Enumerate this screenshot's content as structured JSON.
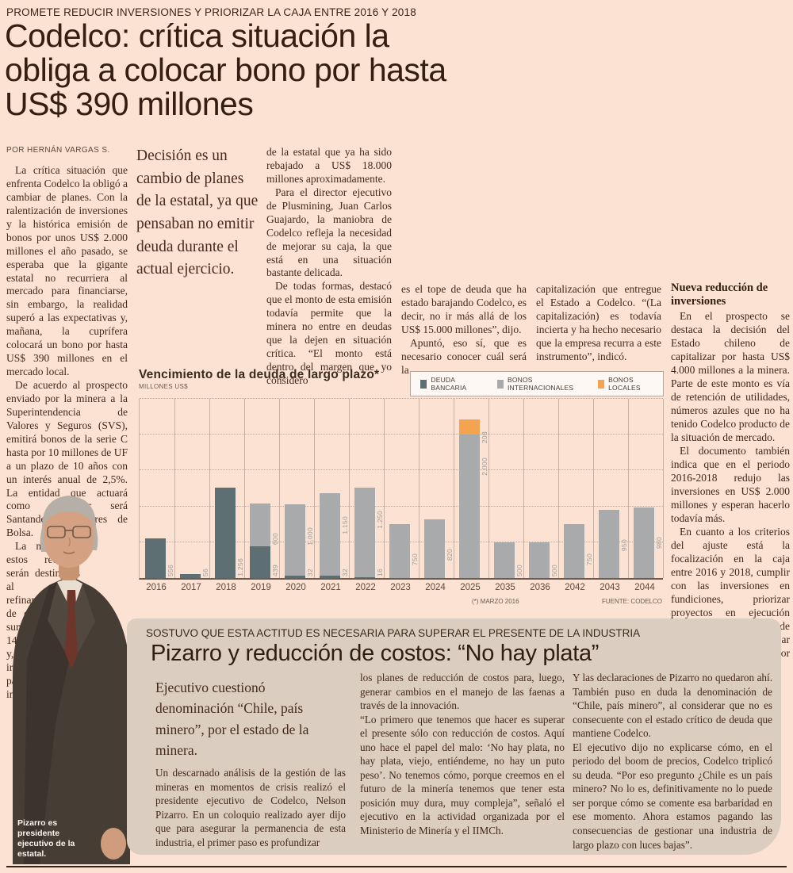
{
  "article1": {
    "kicker": "PROMETE REDUCIR INVERSIONES Y PRIORIZAR LA CAJA ENTRE 2016 Y 2018",
    "headline": "Codelco: crítica situación la obliga a colocar bono por hasta US$ 390 millones",
    "byline": "POR HERNÁN VARGAS S.",
    "col1_p1": "La crítica situación que enfrenta Codelco la obligó a cambiar de planes. Con la ralentización de inversiones y la histórica emisión de bonos por unos US$ 2.000 millones el año pasado, se esperaba que la gigante estatal no recurriera al mercado para financiarse, sin embargo, la realidad superó a las expectativas y, mañana, la cuprífera colocará un bono por hasta US$ 390 millones en el mercado local.",
    "col1_p2": "De acuerdo al prospecto enviado por la minera a la Superintendencia de Valores y Seguros (SVS), emitirá bonos de la serie C hasta por 10 millones de UF a un plazo de 10 años con un interés anual de 2,5%. La entidad que actuará como colocador será Santander Corredores de Bolsa.",
    "col1_p3": "La mitad de estos recursos serán destinados al refinanciamiento de deudas -que suman unos US$ 14.000 millones- y, el otro 50%, irán a cubrir parte del plan de inversiones",
    "pull_quote": "Decisión es un cambio de planes de la estatal, ya que pensaban no emitir deuda durante el actual ejercicio.",
    "col3_p1": "de la estatal que ya ha sido rebajado a US$ 18.000 millones aproximadamente.",
    "col3_p2": "Para el director ejecutivo de Plusmining, Juan Carlos Guajardo, la maniobra de Codelco refleja la necesidad de mejorar su caja, la que está en una situación bastante delicada.",
    "col3_p3": "De todas formas, destacó que el monto de esta emisión todavía permite que la minera no entre en deudas que la dejen en situación crítica. “El monto está dentro del margen que yo considero",
    "col4_p1": "es el tope de deuda que ha estado barajando Codelco, es decir, no ir más allá de los US$ 15.000 millones”, dijo.",
    "col4_p2": "Apuntó, eso sí, que es necesario conocer cuál será la",
    "col5_p1": "capitalización que entregue el Estado a Codelco. “(La capitalización) es todavía incierta y ha hecho necesario que la empresa recurra a este instrumento”, indicó.",
    "sidebar_title": "Nueva reducción de inversiones",
    "sidebar_p1": "En el prospecto se destaca la decisión del Estado chileno de capitalizar por hasta US$ 4.000 millones a la minera. Parte de este monto es vía de retención de utilidades, números azules que no ha tenido Codelco producto de la situación de mercado.",
    "sidebar_p2": "El documento también indica que en el periodo 2016-2018 redujo las inversiones en US$ 2.000 millones y esperan hacerlo todavía más.",
    "sidebar_p3": "En cuanto a los criterios del ajuste está la focalización en la caja entre 2016 y 2018, cumplir con las inversiones en fundiciones, priorizar proyectos en ejecución para evitar costos de paralización y rankear iniciativas por menor Capex, entre otras."
  },
  "chart_data": {
    "type": "bar",
    "title": "Vencimiento de la deuda de largo plazo*",
    "ylabel": "MILLONES US$",
    "categories": [
      "2016",
      "2017",
      "2018",
      "2019",
      "2020",
      "2021",
      "2022",
      "2023",
      "2024",
      "2025",
      "2035",
      "2036",
      "2042",
      "2043",
      "2044"
    ],
    "series": [
      {
        "name": "DEUDA BANCARIA",
        "color": "#5e6f74",
        "values": [
          556,
          56,
          1256,
          439,
          32,
          32,
          16,
          0,
          0,
          0,
          0,
          0,
          0,
          0,
          0
        ]
      },
      {
        "name": "BONOS INTERNACIONALES",
        "color": "#a8aaab",
        "values": [
          0,
          0,
          0,
          600,
          1000,
          1150,
          1250,
          750,
          820,
          2000,
          500,
          500,
          750,
          950,
          980
        ]
      },
      {
        "name": "BONOS LOCALES",
        "color": "#f4a450",
        "values": [
          0,
          0,
          0,
          0,
          0,
          0,
          0,
          0,
          0,
          208,
          0,
          0,
          0,
          0,
          0
        ]
      }
    ],
    "ylim": [
      0,
      2500
    ],
    "grid": "dotted horizontal every 500",
    "legend_position": "top-right",
    "footnote": "(*) MARZO 2016",
    "source": "FUENTE: CODELCO"
  },
  "article2": {
    "kicker": "SOSTUVO QUE ESTA ACTITUD ES NECESARIA PARA SUPERAR EL PRESENTE DE LA INDUSTRIA",
    "headline": "Pizarro y reducción de costos: “No hay plata”",
    "pull_quote": "Ejecutivo cuestionó denominación “Chile, país minero”, por el estado de la minera.",
    "left_p1": "Un descarnado análisis de la gestión de las mineras en momentos de crisis realizó el presidente ejecutivo de Codelco, Nelson Pizarro. En un coloquio realizado ayer dijo que para asegurar la permanencia de esta industria, el primer paso es profundizar",
    "mid_p1": "los planes de reducción de costos para, luego, generar cambios en el manejo de las faenas a través de la innovación.",
    "mid_p2": "“Lo primero que tenemos que hacer es superar el presente sólo con reducción de costos. Aquí uno hace el papel del malo: ‘No hay plata, no hay plata, viejo, entiéndeme, no hay un puto peso’. No tenemos cómo, porque creemos en el futuro de la minería tenemos que tener esta posición muy dura, muy compleja”, señaló el ejecutivo en la actividad organizada por el Ministerio de Minería y el IIMCh.",
    "right_p1": "Y las declaraciones de Pizarro no quedaron ahí. También puso en duda la denominación de “Chile, país minero”, al considerar que no es consecuente con el estado crítico de deuda que mantiene Codelco.",
    "right_p2": "El ejecutivo dijo no explicarse cómo, en el periodo del boom de precios, Codelco triplicó su deuda. “Por eso pregunto ¿Chile es un país minero? No lo es, definitivamente no lo puede ser porque cómo se comente esa barbaridad en ese momento. Ahora estamos pagando las consecuencias de gestionar una industria de largo plazo con luces bajas”.",
    "photo_caption": "Pizarro es presidente ejecutivo de la estatal."
  }
}
